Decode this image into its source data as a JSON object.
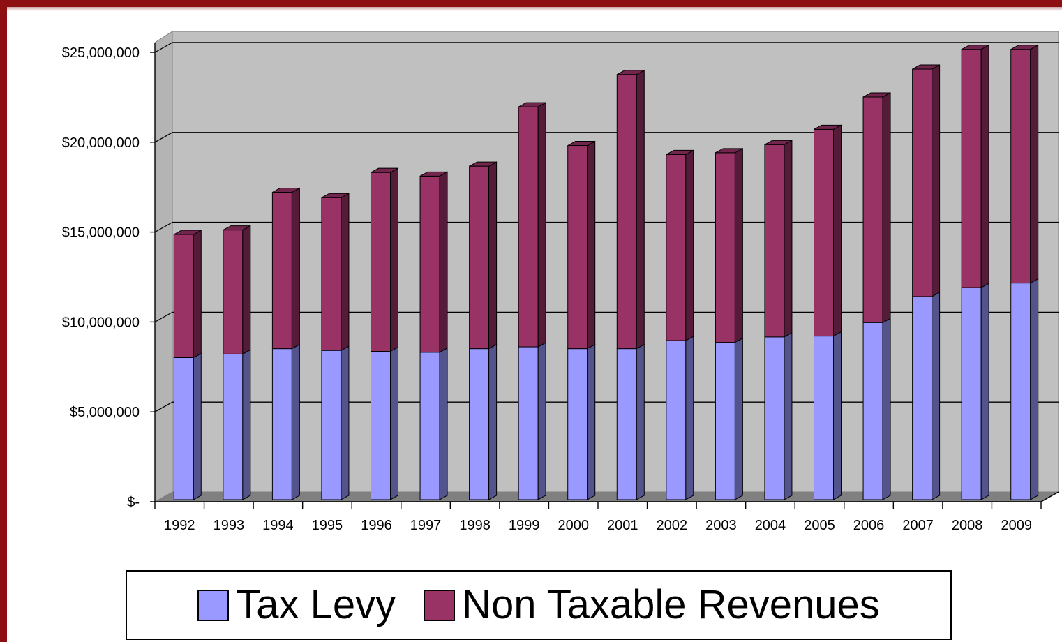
{
  "chart_data": {
    "type": "bar",
    "stacked": true,
    "three_d": true,
    "categories": [
      "1992",
      "1993",
      "1994",
      "1995",
      "1996",
      "1997",
      "1998",
      "1999",
      "2000",
      "2001",
      "2002",
      "2003",
      "2004",
      "2005",
      "2006",
      "2007",
      "2008",
      "2009"
    ],
    "series": [
      {
        "name": "Tax Levy",
        "color": "#9999ff",
        "values": [
          7900000,
          8100000,
          8400000,
          8300000,
          8250000,
          8200000,
          8400000,
          8500000,
          8400000,
          8400000,
          8850000,
          8750000,
          9050000,
          9100000,
          9850000,
          11300000,
          11800000,
          12050000
        ]
      },
      {
        "name": "Non Taxable Revenues",
        "color": "#993366",
        "values": [
          6850000,
          6900000,
          8700000,
          8500000,
          9950000,
          9800000,
          10150000,
          13350000,
          11300000,
          15250000,
          10350000,
          10550000,
          10700000,
          11500000,
          12550000,
          12650000,
          13250000,
          13000000
        ]
      }
    ],
    "y_ticks": [
      {
        "value": 0,
        "label": "$-"
      },
      {
        "value": 5000000,
        "label": "$5,000,000"
      },
      {
        "value": 10000000,
        "label": "$10,000,000"
      },
      {
        "value": 15000000,
        "label": "$15,000,000"
      },
      {
        "value": 20000000,
        "label": "$20,000,000"
      },
      {
        "value": 25000000,
        "label": "$25,000,000"
      }
    ],
    "ylim": [
      0,
      25000000
    ],
    "grid": true,
    "legend_position": "bottom",
    "title": "",
    "xlabel": "",
    "ylabel": ""
  },
  "colors": {
    "frame": "#8e0f12",
    "wall": "#c0c0c0",
    "floor": "#808080"
  }
}
